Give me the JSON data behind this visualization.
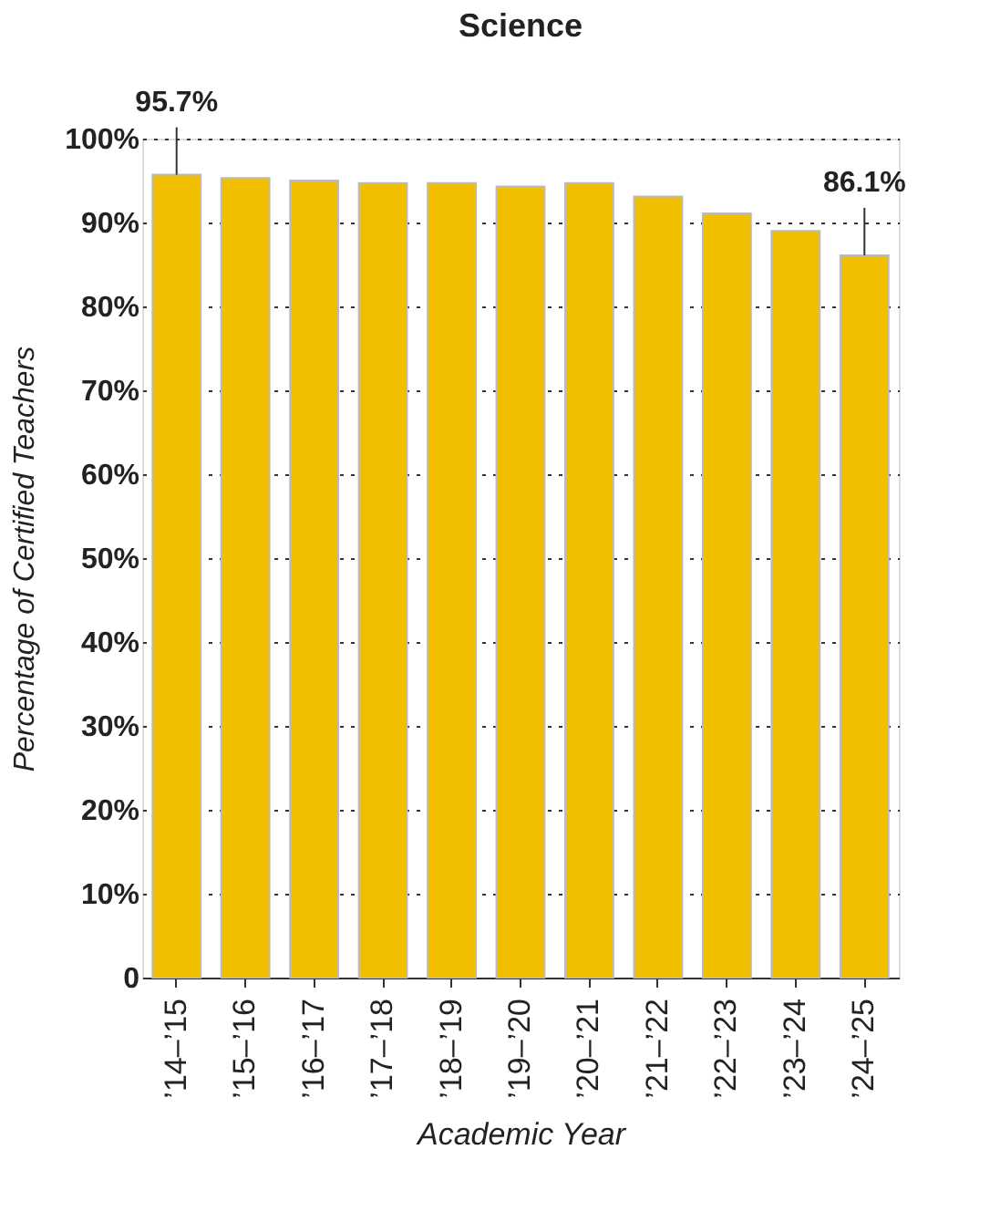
{
  "chart_data": {
    "type": "bar",
    "title": "Science",
    "xlabel": "Academic Year",
    "ylabel": "Percentage of Certified Teachers",
    "categories": [
      "’14–’15",
      "’15–’16",
      "’16–’17",
      "’17–’18",
      "’18–’19",
      "’19–’20",
      "’20–’21",
      "’21–’22",
      "’22–’23",
      "’23–’24",
      "’24–’25"
    ],
    "values": [
      95.7,
      95.3,
      95.0,
      94.7,
      94.7,
      94.3,
      94.7,
      93.1,
      91.1,
      89.0,
      86.1
    ],
    "color": "#f2bf00",
    "ylim": [
      0,
      100
    ],
    "yticks": [
      {
        "value": 0,
        "label": "0"
      },
      {
        "value": 10,
        "label": "10%"
      },
      {
        "value": 20,
        "label": "20%"
      },
      {
        "value": 30,
        "label": "30%"
      },
      {
        "value": 40,
        "label": "40%"
      },
      {
        "value": 50,
        "label": "50%"
      },
      {
        "value": 60,
        "label": "60%"
      },
      {
        "value": 70,
        "label": "70%"
      },
      {
        "value": 80,
        "label": "80%"
      },
      {
        "value": 90,
        "label": "90%"
      },
      {
        "value": 100,
        "label": "100%"
      }
    ],
    "grid": "y",
    "annotations": [
      {
        "text": "95.7%",
        "x": "’14–’15",
        "y": 95.7
      },
      {
        "text": "86.1%",
        "x": "’24–’25",
        "y": 86.1
      }
    ]
  }
}
